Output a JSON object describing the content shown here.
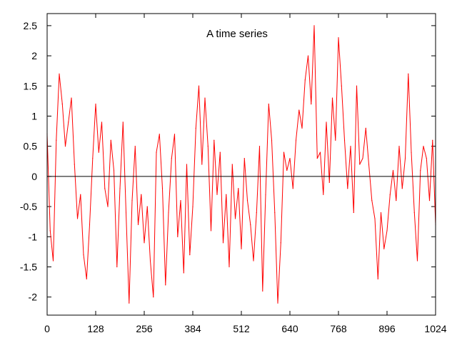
{
  "chart_data": {
    "type": "line",
    "title": "A time series",
    "xlabel": "",
    "ylabel": "",
    "xlim": [
      0,
      1024
    ],
    "ylim": [
      -2.3,
      2.7
    ],
    "xticks": [
      0,
      128,
      256,
      384,
      512,
      640,
      768,
      896,
      1024
    ],
    "yticks": [
      -2,
      -1.5,
      -1,
      -0.5,
      0,
      0.5,
      1,
      1.5,
      2,
      2.5
    ],
    "xtick_labels": [
      "0",
      "128",
      "256",
      "384",
      "512",
      "640",
      "768",
      "896",
      "1024"
    ],
    "ytick_labels": [
      "-2",
      "-1.5",
      "-1",
      "-0.5",
      "0",
      "0.5",
      "1",
      "1.5",
      "2",
      "2.5"
    ],
    "grid": false,
    "reference_line": {
      "y": 0,
      "color": "#000000"
    },
    "series": [
      {
        "color": "#ff0000",
        "x": [
          0,
          8,
          16,
          24,
          32,
          40,
          48,
          56,
          64,
          72,
          80,
          88,
          96,
          104,
          112,
          120,
          128,
          136,
          144,
          152,
          160,
          168,
          176,
          184,
          192,
          200,
          208,
          216,
          224,
          232,
          240,
          248,
          256,
          264,
          272,
          280,
          288,
          296,
          304,
          312,
          320,
          328,
          336,
          344,
          352,
          360,
          368,
          376,
          384,
          392,
          400,
          408,
          416,
          424,
          432,
          440,
          448,
          456,
          464,
          472,
          480,
          488,
          496,
          504,
          512,
          520,
          528,
          536,
          544,
          552,
          560,
          568,
          576,
          584,
          592,
          600,
          608,
          616,
          624,
          632,
          640,
          648,
          656,
          664,
          672,
          680,
          688,
          696,
          704,
          712,
          720,
          728,
          736,
          744,
          752,
          760,
          768,
          776,
          784,
          792,
          800,
          808,
          816,
          824,
          832,
          840,
          848,
          856,
          864,
          872,
          880,
          888,
          896,
          904,
          912,
          920,
          928,
          936,
          944,
          952,
          960,
          968,
          976,
          984,
          992,
          1000,
          1008,
          1016,
          1024
        ],
        "y": [
          0.7,
          -0.9,
          -1.4,
          0.6,
          1.7,
          1.2,
          0.5,
          0.9,
          1.3,
          0.2,
          -0.7,
          -0.3,
          -1.3,
          -1.7,
          -0.8,
          0.3,
          1.2,
          0.4,
          0.9,
          -0.2,
          -0.5,
          0.6,
          0.1,
          -1.5,
          -0.2,
          0.9,
          -0.6,
          -2.1,
          -0.4,
          0.5,
          -0.8,
          -0.3,
          -1.1,
          -0.5,
          -1.4,
          -2.0,
          0.4,
          0.7,
          -0.2,
          -1.8,
          -0.6,
          0.3,
          0.7,
          -1.0,
          -0.4,
          -1.6,
          0.2,
          -1.3,
          -0.5,
          0.8,
          1.5,
          0.2,
          1.3,
          0.5,
          -0.9,
          0.6,
          -0.3,
          0.4,
          -1.1,
          -0.3,
          -1.5,
          0.2,
          -0.7,
          -0.2,
          -1.2,
          0.3,
          -0.4,
          -0.8,
          -1.4,
          -0.6,
          0.5,
          -1.9,
          -0.3,
          1.2,
          0.6,
          -0.6,
          -2.1,
          -1.1,
          0.4,
          0.1,
          0.3,
          -0.2,
          0.6,
          1.1,
          0.8,
          1.6,
          2.0,
          1.2,
          2.5,
          0.3,
          0.4,
          -0.3,
          0.9,
          -0.1,
          1.3,
          0.6,
          2.3,
          1.5,
          0.6,
          -0.2,
          0.5,
          -0.6,
          1.5,
          0.2,
          0.3,
          0.8,
          0.2,
          -0.4,
          -0.7,
          -1.7,
          -0.6,
          -1.2,
          -0.9,
          -0.3,
          0.1,
          -0.4,
          0.5,
          -0.2,
          0.3,
          1.7,
          0.4,
          -0.6,
          -1.4,
          0.1,
          0.5,
          0.3,
          -0.4,
          0.6,
          -0.8
        ]
      }
    ]
  }
}
